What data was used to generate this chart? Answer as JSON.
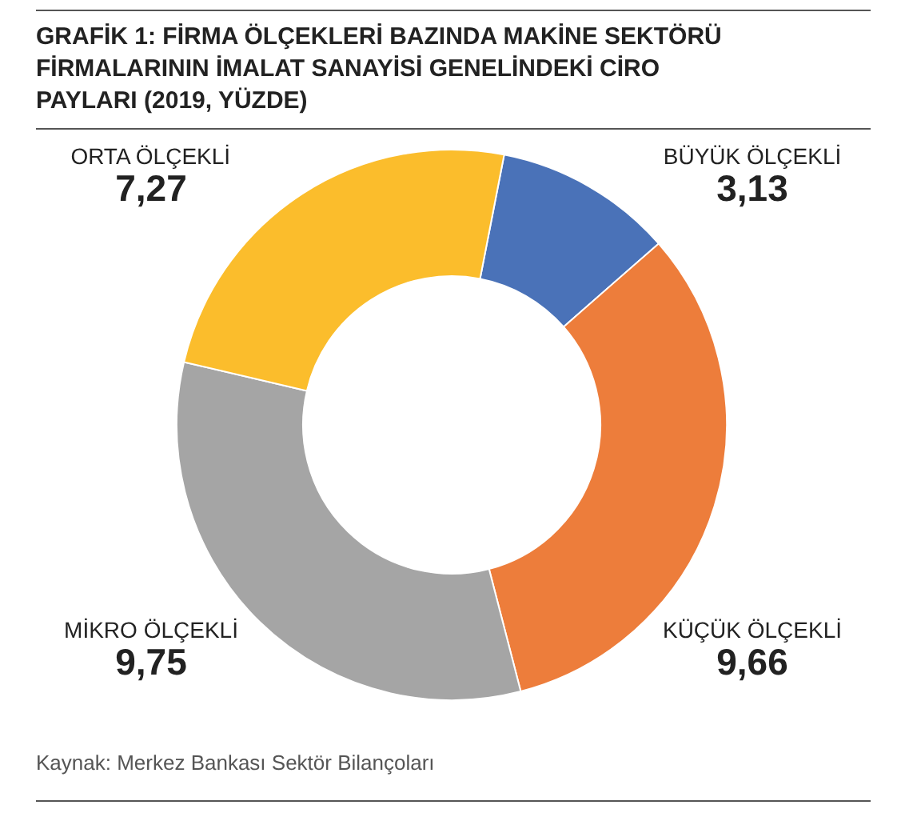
{
  "chart_data": {
    "type": "donut",
    "title": "GRAFİK 1: FİRMA ÖLÇEKLERİ BAZINDA MAKİNE SEKTÖRÜ\nFİRMALARININ İMALAT SANAYİSİ GENELİNDEKİ CİRO\nPAYLARI (2019, YÜZDE)",
    "categories": [
      "BÜYÜK ÖLÇEKLİ",
      "KÜÇÜK ÖLÇEKLİ",
      "MİKRO ÖLÇEKLİ",
      "ORTA ÖLÇEKLİ"
    ],
    "values": [
      3.13,
      9.66,
      9.75,
      7.27
    ],
    "colors": [
      "#4a72b8",
      "#ed7d3b",
      "#a5a5a5",
      "#fbbd2c"
    ],
    "value_labels": [
      "3,13",
      "9,66",
      "9,75",
      "7,27"
    ],
    "annotations": [
      "Kaynak: Merkez Bankası Sektör Bilançoları"
    ]
  }
}
